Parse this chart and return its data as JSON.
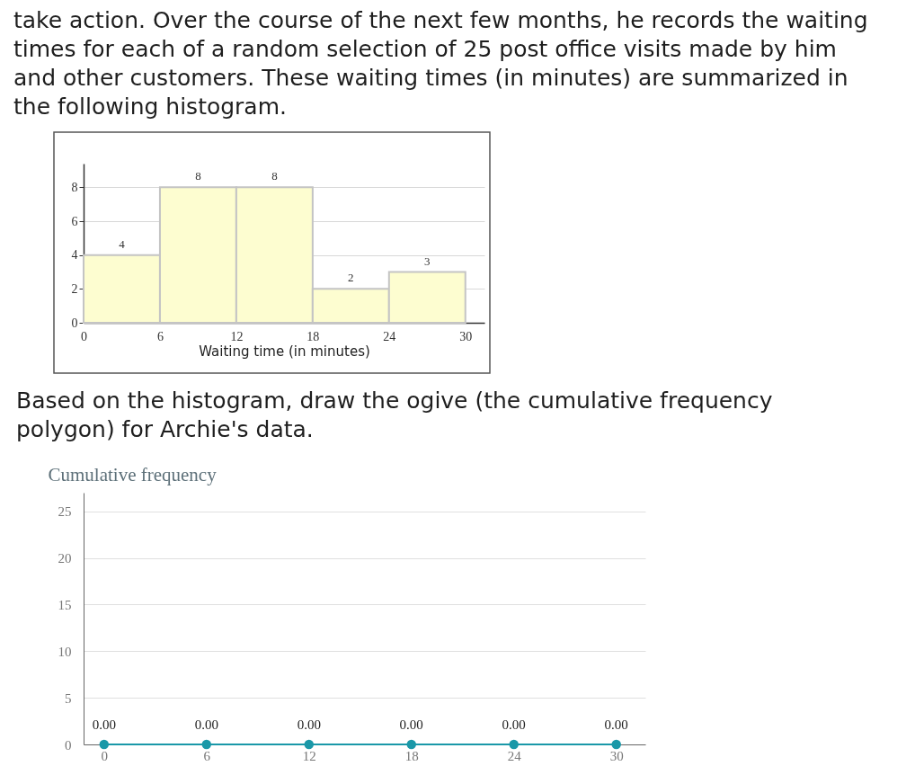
{
  "chart_data": [
    {
      "type": "histogram",
      "title": "take action. Over the course of the next few months, he records the waiting\ntimes for each of a random selection of 25 post office visits made by him\nand other customers. These waiting times (in minutes) are summarized in\nthe following histogram.",
      "xlabel": "Waiting time (in minutes)",
      "bins": [
        0,
        6,
        12,
        18,
        24,
        30
      ],
      "values": [
        4,
        8,
        8,
        2,
        3
      ],
      "color": "#fdfdd0",
      "data_labels": true,
      "xlim": [
        0,
        31.5
      ],
      "ylim": [
        0,
        9.4
      ],
      "xticks": [
        0,
        6,
        12,
        18,
        24,
        30
      ],
      "yticks": [
        0,
        2,
        4,
        6,
        8
      ],
      "grid": "y"
    },
    {
      "type": "line",
      "title": "Based on the histogram, draw the ogive (the cumulative frequency\npolygon) for Archie's data.",
      "ylabel": "Cumulative frequency",
      "x": [
        0,
        6,
        12,
        18,
        24,
        30
      ],
      "series": [
        {
          "color": "#1a98a8",
          "values": [
            0,
            0,
            0,
            0,
            0,
            0
          ],
          "value_labels": [
            "0.00",
            "0.00",
            "0.00",
            "0.00",
            "0.00",
            "0.00"
          ]
        }
      ],
      "marker": "circle",
      "line_style": "solid",
      "xlim": [
        -1.2,
        31.7
      ],
      "ylim": [
        0,
        27
      ],
      "xticks": [
        0,
        6,
        12,
        18,
        24,
        30
      ],
      "yticks": [
        0,
        5,
        10,
        15,
        20,
        25
      ],
      "grid": "y"
    }
  ]
}
